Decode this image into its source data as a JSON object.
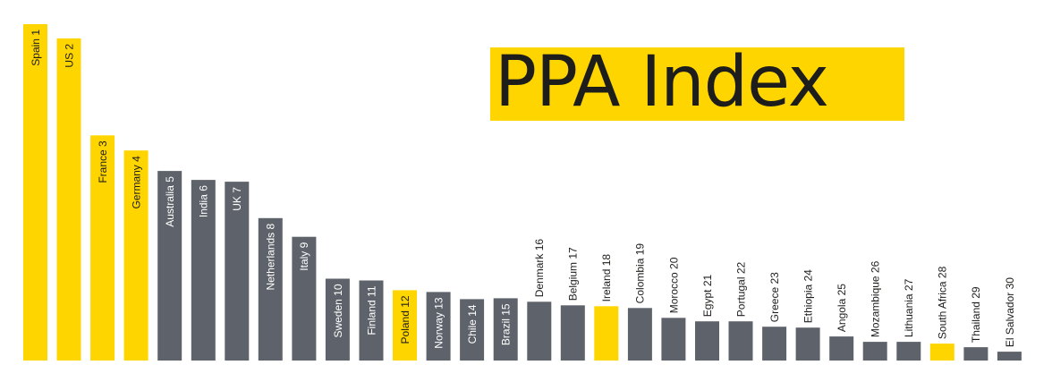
{
  "title": "PPA Index",
  "colors": {
    "highlight": "#ffd500",
    "default": "#5e636b",
    "label_on_bar": "#ffffff",
    "label_on_highlight": "#1d1d1b",
    "label_above": "#1d1d1b",
    "title_text": "#1d1d1b"
  },
  "chart_data": {
    "type": "bar",
    "orientation": "vertical",
    "value_note": "relative bar heights, estimated; no axis printed",
    "categories": [
      "Spain 1",
      "US 2",
      "France 3",
      "Germany 4",
      "Australia 5",
      "India 6",
      "UK 7",
      "Netherlands 8",
      "Italy 9",
      "Sweden 10",
      "Finland 11",
      "Poland 12",
      "Norway 13",
      "Chile 14",
      "Brazil 15",
      "Denmark 16",
      "Belgium 17",
      "Ireland 18",
      "Colombia 19",
      "Morocco 20",
      "Egypt 21",
      "Portugal 22",
      "Greece 23",
      "Ethiopia 24",
      "Angola 25",
      "Mozambique 26",
      "Lithuania 27",
      "South Africa 28",
      "Thailand 29",
      "El Salvador 30"
    ],
    "values": [
      378,
      362,
      253,
      236,
      213,
      203,
      201,
      160,
      139,
      92,
      90,
      79,
      77,
      69,
      70,
      66,
      62,
      61,
      59,
      48,
      44,
      44,
      38,
      37,
      27,
      21,
      21,
      19,
      15,
      10
    ],
    "highlighted": [
      true,
      true,
      true,
      true,
      false,
      false,
      false,
      false,
      false,
      false,
      false,
      true,
      false,
      false,
      false,
      false,
      false,
      true,
      false,
      false,
      false,
      false,
      false,
      false,
      false,
      false,
      false,
      true,
      false,
      false
    ],
    "ylim": [
      0,
      380
    ],
    "grid": false,
    "legend": "none"
  }
}
